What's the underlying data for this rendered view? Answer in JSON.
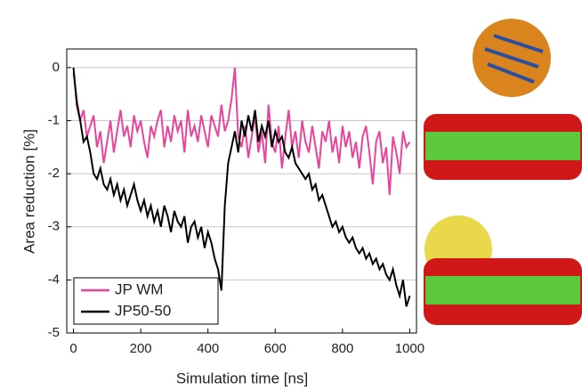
{
  "chart_data": {
    "type": "line",
    "x_label": "Simulation time [ns]",
    "y_label": "Area reduction [%]",
    "x": [
      0,
      10,
      20,
      30,
      40,
      50,
      60,
      70,
      80,
      90,
      100,
      110,
      120,
      130,
      140,
      150,
      160,
      170,
      180,
      190,
      200,
      210,
      220,
      230,
      240,
      250,
      260,
      270,
      280,
      290,
      300,
      310,
      320,
      330,
      340,
      350,
      360,
      370,
      380,
      390,
      400,
      410,
      420,
      430,
      440,
      450,
      460,
      470,
      480,
      490,
      500,
      510,
      520,
      530,
      540,
      550,
      560,
      570,
      580,
      590,
      600,
      610,
      620,
      630,
      640,
      650,
      660,
      670,
      680,
      690,
      700,
      710,
      720,
      730,
      740,
      750,
      760,
      770,
      780,
      790,
      800,
      810,
      820,
      830,
      840,
      850,
      860,
      870,
      880,
      890,
      900,
      910,
      920,
      930,
      940,
      950,
      960,
      970,
      980,
      990,
      1000
    ],
    "series": [
      {
        "name": "JP WM",
        "color": "#e8449c",
        "values": [
          -0.1,
          -0.6,
          -1.0,
          -0.8,
          -1.3,
          -1.1,
          -0.9,
          -1.5,
          -1.2,
          -1.8,
          -1.4,
          -1.0,
          -1.6,
          -1.2,
          -0.8,
          -1.3,
          -1.1,
          -1.5,
          -0.9,
          -1.2,
          -1.0,
          -1.4,
          -1.7,
          -1.1,
          -1.3,
          -1.0,
          -0.8,
          -1.5,
          -1.1,
          -1.4,
          -0.9,
          -1.2,
          -1.0,
          -1.6,
          -0.8,
          -1.3,
          -1.1,
          -1.4,
          -0.9,
          -1.2,
          -1.5,
          -0.9,
          -1.1,
          -1.3,
          -0.7,
          -1.2,
          -1.0,
          -0.6,
          0.0,
          -1.3,
          -1.5,
          -1.1,
          -1.7,
          -1.3,
          -0.9,
          -1.6,
          -1.2,
          -1.8,
          -0.7,
          -1.4,
          -1.6,
          -1.1,
          -1.9,
          -1.3,
          -0.8,
          -1.5,
          -1.2,
          -1.7,
          -1.0,
          -1.4,
          -1.6,
          -1.1,
          -1.5,
          -1.9,
          -1.2,
          -1.4,
          -1.0,
          -1.6,
          -1.3,
          -1.8,
          -1.1,
          -1.5,
          -1.2,
          -1.7,
          -1.4,
          -1.9,
          -1.3,
          -1.1,
          -1.6,
          -2.2,
          -1.4,
          -1.2,
          -1.8,
          -1.5,
          -2.4,
          -1.3,
          -1.6,
          -2.0,
          -1.2,
          -1.5,
          -1.4
        ]
      },
      {
        "name": "JP50-50",
        "color": "#000000",
        "values": [
          0,
          -0.7,
          -1.0,
          -1.4,
          -1.3,
          -1.6,
          -2.0,
          -2.1,
          -1.9,
          -2.2,
          -2.3,
          -2.1,
          -2.4,
          -2.2,
          -2.5,
          -2.3,
          -2.6,
          -2.4,
          -2.2,
          -2.5,
          -2.7,
          -2.5,
          -2.8,
          -2.6,
          -2.9,
          -2.7,
          -3.0,
          -2.6,
          -2.8,
          -3.1,
          -2.7,
          -2.9,
          -3.0,
          -2.8,
          -3.3,
          -3.0,
          -2.9,
          -3.2,
          -3.0,
          -3.4,
          -3.1,
          -3.3,
          -3.6,
          -3.8,
          -4.2,
          -2.6,
          -1.8,
          -1.5,
          -1.2,
          -1.6,
          -1.0,
          -1.3,
          -0.9,
          -1.2,
          -0.8,
          -1.4,
          -1.1,
          -1.3,
          -1.0,
          -1.5,
          -1.2,
          -1.4,
          -1.3,
          -1.6,
          -1.7,
          -1.5,
          -1.8,
          -1.9,
          -2.0,
          -2.1,
          -2.0,
          -2.3,
          -2.2,
          -2.5,
          -2.4,
          -2.6,
          -2.8,
          -3.0,
          -2.9,
          -3.1,
          -3.0,
          -3.2,
          -3.3,
          -3.2,
          -3.4,
          -3.5,
          -3.4,
          -3.6,
          -3.5,
          -3.7,
          -3.6,
          -3.8,
          -3.7,
          -3.9,
          -4.0,
          -3.8,
          -4.1,
          -4.3,
          -4.0,
          -4.5,
          -4.3
        ]
      }
    ],
    "xlim": [
      -20,
      1020
    ],
    "ylim": [
      -5,
      0.35
    ],
    "xticks": [
      0,
      200,
      400,
      600,
      800,
      1000
    ],
    "yticks": [
      0,
      -1,
      -2,
      -3,
      -4,
      -5
    ],
    "grid": true,
    "legend": "lower left"
  }
}
